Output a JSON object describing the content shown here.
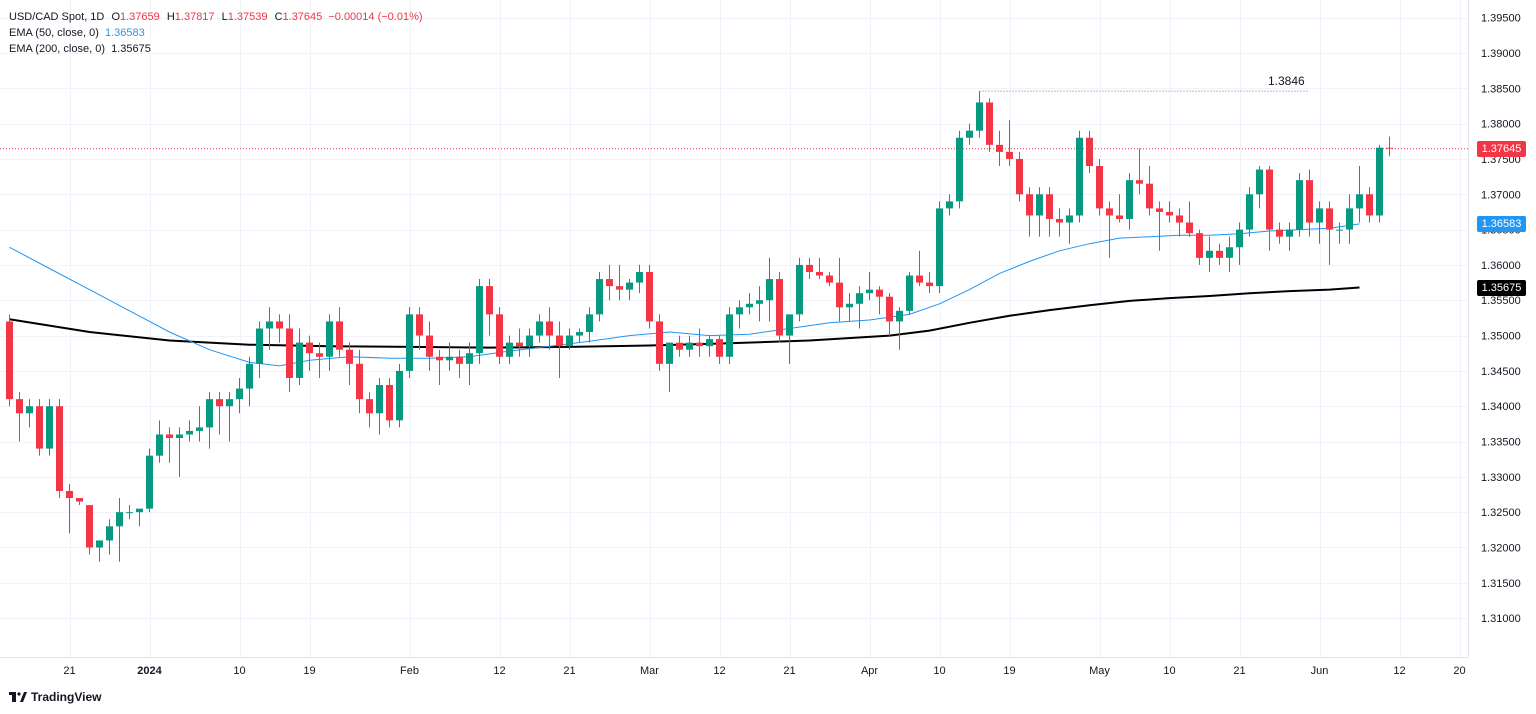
{
  "header": {
    "symbol": "USD/CAD Spot, 1D",
    "open_label": "O",
    "open": "1.37659",
    "high_label": "H",
    "high": "1.37817",
    "low_label": "L",
    "low": "1.37539",
    "close_label": "C",
    "close": "1.37645",
    "change": "−0.00014 (−0.01%)",
    "ema50_label": "EMA (50, close, 0)",
    "ema50_value": "1.36583",
    "ema200_label": "EMA (200, close, 0)",
    "ema200_value": "1.35675"
  },
  "badges": {
    "price": "1.37645",
    "ema50": "1.36583",
    "ema200": "1.35675"
  },
  "annotation": {
    "high_label": "1.3846",
    "high_value": 1.3846
  },
  "brand": {
    "name": "TradingView"
  },
  "colors": {
    "up": "#089981",
    "down": "#f23645",
    "ema50": "#2196f3",
    "ema200": "#000000",
    "grid": "#f0f3fa",
    "text": "#131722",
    "price_line": "#f23645"
  },
  "chart_data": {
    "type": "candlestick",
    "title": "USD/CAD Spot, 1D",
    "y_range": [
      1.3045,
      1.3975
    ],
    "y_ticks": [
      "1.39500",
      "1.39000",
      "1.38500",
      "1.38000",
      "1.37500",
      "1.37000",
      "1.36500",
      "1.36000",
      "1.35500",
      "1.35000",
      "1.34500",
      "1.34000",
      "1.33500",
      "1.33000",
      "1.32500",
      "1.32000",
      "1.31500",
      "1.31000"
    ],
    "x_ticks": [
      {
        "label": "21",
        "i": 6
      },
      {
        "label": "2024",
        "i": 14
      },
      {
        "label": "10",
        "i": 23
      },
      {
        "label": "19",
        "i": 30
      },
      {
        "label": "Feb",
        "i": 40
      },
      {
        "label": "12",
        "i": 49
      },
      {
        "label": "21",
        "i": 56
      },
      {
        "label": "Mar",
        "i": 64
      },
      {
        "label": "12",
        "i": 71
      },
      {
        "label": "21",
        "i": 78
      },
      {
        "label": "Apr",
        "i": 86
      },
      {
        "label": "10",
        "i": 93
      },
      {
        "label": "19",
        "i": 100
      },
      {
        "label": "May",
        "i": 109
      },
      {
        "label": "10",
        "i": 116
      },
      {
        "label": "21",
        "i": 123
      },
      {
        "label": "Jun",
        "i": 131
      },
      {
        "label": "12",
        "i": 139
      },
      {
        "label": "20",
        "i": 145
      }
    ],
    "candles": [
      [
        1.352,
        1.353,
        1.34,
        1.341
      ],
      [
        1.341,
        1.342,
        1.335,
        1.339
      ],
      [
        1.339,
        1.341,
        1.337,
        1.34
      ],
      [
        1.34,
        1.341,
        1.333,
        1.334
      ],
      [
        1.334,
        1.341,
        1.333,
        1.34
      ],
      [
        1.34,
        1.341,
        1.327,
        1.328
      ],
      [
        1.328,
        1.329,
        1.322,
        1.327
      ],
      [
        1.327,
        1.327,
        1.326,
        1.3265
      ],
      [
        1.326,
        1.326,
        1.319,
        1.32
      ],
      [
        1.32,
        1.321,
        1.318,
        1.321
      ],
      [
        1.321,
        1.324,
        1.319,
        1.323
      ],
      [
        1.323,
        1.327,
        1.318,
        1.325
      ],
      [
        1.325,
        1.326,
        1.324,
        1.325
      ],
      [
        1.325,
        1.325,
        1.323,
        1.3255
      ],
      [
        1.3255,
        1.334,
        1.325,
        1.333
      ],
      [
        1.333,
        1.338,
        1.332,
        1.336
      ],
      [
        1.336,
        1.337,
        1.332,
        1.3355
      ],
      [
        1.3355,
        1.337,
        1.33,
        1.336
      ],
      [
        1.336,
        1.338,
        1.335,
        1.3365
      ],
      [
        1.3365,
        1.34,
        1.335,
        1.337
      ],
      [
        1.337,
        1.342,
        1.334,
        1.341
      ],
      [
        1.341,
        1.342,
        1.336,
        1.34
      ],
      [
        1.34,
        1.342,
        1.335,
        1.341
      ],
      [
        1.341,
        1.344,
        1.339,
        1.3425
      ],
      [
        1.3425,
        1.347,
        1.34,
        1.346
      ],
      [
        1.346,
        1.352,
        1.344,
        1.351
      ],
      [
        1.351,
        1.354,
        1.348,
        1.352
      ],
      [
        1.352,
        1.353,
        1.349,
        1.351
      ],
      [
        1.351,
        1.353,
        1.342,
        1.344
      ],
      [
        1.344,
        1.351,
        1.343,
        1.349
      ],
      [
        1.349,
        1.35,
        1.345,
        1.3475
      ],
      [
        1.3475,
        1.349,
        1.344,
        1.347
      ],
      [
        1.347,
        1.353,
        1.345,
        1.352
      ],
      [
        1.352,
        1.354,
        1.347,
        1.348
      ],
      [
        1.348,
        1.349,
        1.343,
        1.346
      ],
      [
        1.346,
        1.348,
        1.339,
        1.341
      ],
      [
        1.341,
        1.342,
        1.337,
        1.339
      ],
      [
        1.339,
        1.344,
        1.336,
        1.343
      ],
      [
        1.343,
        1.344,
        1.337,
        1.338
      ],
      [
        1.338,
        1.346,
        1.337,
        1.345
      ],
      [
        1.345,
        1.354,
        1.344,
        1.353
      ],
      [
        1.353,
        1.354,
        1.348,
        1.35
      ],
      [
        1.35,
        1.352,
        1.345,
        1.347
      ],
      [
        1.347,
        1.348,
        1.343,
        1.3465
      ],
      [
        1.3465,
        1.349,
        1.345,
        1.347
      ],
      [
        1.347,
        1.348,
        1.344,
        1.346
      ],
      [
        1.346,
        1.349,
        1.343,
        1.3475
      ],
      [
        1.3475,
        1.358,
        1.346,
        1.357
      ],
      [
        1.357,
        1.358,
        1.35,
        1.353
      ],
      [
        1.353,
        1.354,
        1.346,
        1.347
      ],
      [
        1.347,
        1.35,
        1.346,
        1.349
      ],
      [
        1.349,
        1.351,
        1.347,
        1.3485
      ],
      [
        1.3485,
        1.351,
        1.347,
        1.35
      ],
      [
        1.35,
        1.353,
        1.349,
        1.352
      ],
      [
        1.352,
        1.354,
        1.348,
        1.35
      ],
      [
        1.35,
        1.352,
        1.344,
        1.3485
      ],
      [
        1.3485,
        1.351,
        1.348,
        1.35
      ],
      [
        1.35,
        1.351,
        1.349,
        1.3505
      ],
      [
        1.3505,
        1.354,
        1.349,
        1.353
      ],
      [
        1.353,
        1.359,
        1.352,
        1.358
      ],
      [
        1.358,
        1.36,
        1.355,
        1.357
      ],
      [
        1.357,
        1.36,
        1.355,
        1.3565
      ],
      [
        1.3565,
        1.358,
        1.355,
        1.3575
      ],
      [
        1.3575,
        1.36,
        1.356,
        1.359
      ],
      [
        1.359,
        1.36,
        1.351,
        1.352
      ],
      [
        1.352,
        1.353,
        1.345,
        1.346
      ],
      [
        1.346,
        1.349,
        1.342,
        1.349
      ],
      [
        1.349,
        1.35,
        1.347,
        1.348
      ],
      [
        1.348,
        1.35,
        1.347,
        1.349
      ],
      [
        1.349,
        1.351,
        1.347,
        1.3485
      ],
      [
        1.3485,
        1.35,
        1.347,
        1.3495
      ],
      [
        1.3495,
        1.35,
        1.346,
        1.347
      ],
      [
        1.347,
        1.354,
        1.346,
        1.353
      ],
      [
        1.353,
        1.355,
        1.351,
        1.354
      ],
      [
        1.354,
        1.356,
        1.353,
        1.3545
      ],
      [
        1.3545,
        1.357,
        1.352,
        1.355
      ],
      [
        1.355,
        1.361,
        1.352,
        1.358
      ],
      [
        1.358,
        1.359,
        1.349,
        1.35
      ],
      [
        1.35,
        1.353,
        1.346,
        1.353
      ],
      [
        1.353,
        1.361,
        1.352,
        1.36
      ],
      [
        1.36,
        1.361,
        1.358,
        1.359
      ],
      [
        1.359,
        1.361,
        1.358,
        1.3585
      ],
      [
        1.3585,
        1.359,
        1.357,
        1.3575
      ],
      [
        1.3575,
        1.361,
        1.352,
        1.354
      ],
      [
        1.354,
        1.356,
        1.352,
        1.3545
      ],
      [
        1.3545,
        1.357,
        1.351,
        1.356
      ],
      [
        1.356,
        1.359,
        1.355,
        1.3565
      ],
      [
        1.3565,
        1.357,
        1.353,
        1.3555
      ],
      [
        1.3555,
        1.356,
        1.35,
        1.352
      ],
      [
        1.352,
        1.354,
        1.348,
        1.3535
      ],
      [
        1.3535,
        1.359,
        1.353,
        1.3585
      ],
      [
        1.3585,
        1.362,
        1.357,
        1.3575
      ],
      [
        1.3575,
        1.359,
        1.356,
        1.357
      ],
      [
        1.357,
        1.369,
        1.356,
        1.368
      ],
      [
        1.368,
        1.37,
        1.367,
        1.369
      ],
      [
        1.369,
        1.379,
        1.368,
        1.378
      ],
      [
        1.378,
        1.38,
        1.377,
        1.379
      ],
      [
        1.379,
        1.3846,
        1.378,
        1.383
      ],
      [
        1.383,
        1.3836,
        1.376,
        1.377
      ],
      [
        1.377,
        1.379,
        1.374,
        1.376
      ],
      [
        1.376,
        1.3805,
        1.374,
        1.375
      ],
      [
        1.375,
        1.376,
        1.369,
        1.37
      ],
      [
        1.37,
        1.371,
        1.364,
        1.367
      ],
      [
        1.367,
        1.371,
        1.364,
        1.37
      ],
      [
        1.37,
        1.371,
        1.364,
        1.3665
      ],
      [
        1.3665,
        1.368,
        1.364,
        1.366
      ],
      [
        1.366,
        1.368,
        1.363,
        1.367
      ],
      [
        1.367,
        1.379,
        1.366,
        1.378
      ],
      [
        1.378,
        1.379,
        1.373,
        1.374
      ],
      [
        1.374,
        1.375,
        1.367,
        1.368
      ],
      [
        1.368,
        1.369,
        1.361,
        1.367
      ],
      [
        1.367,
        1.37,
        1.366,
        1.3665
      ],
      [
        1.3665,
        1.373,
        1.365,
        1.372
      ],
      [
        1.372,
        1.3765,
        1.37,
        1.3715
      ],
      [
        1.3715,
        1.374,
        1.367,
        1.368
      ],
      [
        1.368,
        1.369,
        1.362,
        1.3675
      ],
      [
        1.3675,
        1.369,
        1.366,
        1.367
      ],
      [
        1.367,
        1.368,
        1.364,
        1.366
      ],
      [
        1.366,
        1.369,
        1.364,
        1.3645
      ],
      [
        1.3645,
        1.365,
        1.36,
        1.361
      ],
      [
        1.361,
        1.364,
        1.359,
        1.362
      ],
      [
        1.362,
        1.363,
        1.36,
        1.361
      ],
      [
        1.361,
        1.364,
        1.359,
        1.3625
      ],
      [
        1.3625,
        1.366,
        1.36,
        1.365
      ],
      [
        1.365,
        1.371,
        1.364,
        1.37
      ],
      [
        1.37,
        1.374,
        1.368,
        1.3735
      ],
      [
        1.3735,
        1.374,
        1.362,
        1.365
      ],
      [
        1.365,
        1.366,
        1.363,
        1.364
      ],
      [
        1.364,
        1.366,
        1.362,
        1.365
      ],
      [
        1.365,
        1.373,
        1.364,
        1.372
      ],
      [
        1.372,
        1.3735,
        1.364,
        1.366
      ],
      [
        1.366,
        1.369,
        1.363,
        1.368
      ],
      [
        1.368,
        1.369,
        1.36,
        1.365
      ],
      [
        1.365,
        1.366,
        1.363,
        1.365
      ],
      [
        1.365,
        1.37,
        1.363,
        1.368
      ],
      [
        1.368,
        1.374,
        1.366,
        1.37
      ],
      [
        1.37,
        1.371,
        1.366,
        1.367
      ],
      [
        1.367,
        1.377,
        1.366,
        1.3766
      ],
      [
        1.37659,
        1.37817,
        1.37539,
        1.37645
      ]
    ],
    "ema50": [
      [
        0,
        1.3625
      ],
      [
        4,
        1.3595
      ],
      [
        8,
        1.3565
      ],
      [
        12,
        1.3535
      ],
      [
        16,
        1.3505
      ],
      [
        20,
        1.348
      ],
      [
        24,
        1.3462
      ],
      [
        27,
        1.3457
      ],
      [
        30,
        1.3465
      ],
      [
        34,
        1.347
      ],
      [
        38,
        1.3468
      ],
      [
        42,
        1.3468
      ],
      [
        46,
        1.347
      ],
      [
        50,
        1.3478
      ],
      [
        54,
        1.3485
      ],
      [
        58,
        1.3492
      ],
      [
        62,
        1.35
      ],
      [
        66,
        1.3505
      ],
      [
        70,
        1.35
      ],
      [
        74,
        1.3502
      ],
      [
        78,
        1.351
      ],
      [
        82,
        1.3518
      ],
      [
        86,
        1.3522
      ],
      [
        90,
        1.353
      ],
      [
        93,
        1.3545
      ],
      [
        96,
        1.3565
      ],
      [
        99,
        1.3588
      ],
      [
        102,
        1.3605
      ],
      [
        105,
        1.362
      ],
      [
        108,
        1.363
      ],
      [
        111,
        1.3638
      ],
      [
        114,
        1.364
      ],
      [
        117,
        1.3642
      ],
      [
        120,
        1.3642
      ],
      [
        123,
        1.3644
      ],
      [
        126,
        1.3648
      ],
      [
        129,
        1.365
      ],
      [
        132,
        1.3652
      ],
      [
        135,
        1.3658
      ]
    ],
    "ema200": [
      [
        0,
        1.3523
      ],
      [
        8,
        1.3505
      ],
      [
        16,
        1.3493
      ],
      [
        24,
        1.3487
      ],
      [
        32,
        1.3485
      ],
      [
        40,
        1.3484
      ],
      [
        48,
        1.3483
      ],
      [
        56,
        1.3484
      ],
      [
        64,
        1.3486
      ],
      [
        72,
        1.3489
      ],
      [
        80,
        1.3493
      ],
      [
        88,
        1.35
      ],
      [
        92,
        1.3507
      ],
      [
        96,
        1.3518
      ],
      [
        100,
        1.3528
      ],
      [
        104,
        1.3536
      ],
      [
        108,
        1.3543
      ],
      [
        112,
        1.3549
      ],
      [
        116,
        1.3553
      ],
      [
        120,
        1.3556
      ],
      [
        124,
        1.356
      ],
      [
        128,
        1.3563
      ],
      [
        132,
        1.3565
      ],
      [
        135,
        1.3568
      ]
    ],
    "last_price": 1.37645,
    "price_axis_side": "right",
    "grid": true
  }
}
